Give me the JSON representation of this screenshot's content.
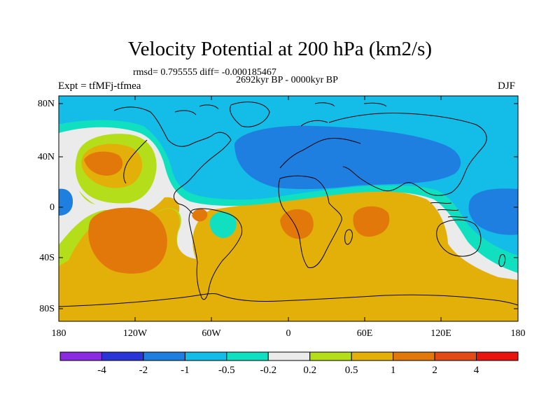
{
  "title": "Velocity Potential at 200 hPa (km2/s)",
  "stats": "rmsd= 0.795555 diff= -0.000185467",
  "period": "2692kyr BP - 0000kyr BP",
  "experiment": "Expt = tfMFj-tfmea",
  "season": "DJF",
  "lat_labels": [
    "80N",
    "40N",
    "0",
    "40S",
    "80S"
  ],
  "lon_labels": [
    "180",
    "120W",
    "60W",
    "0",
    "60E",
    "120E",
    "180"
  ],
  "colorbar": {
    "labels": [
      "-4",
      "-2",
      "-1",
      "-0.5",
      "-0.2",
      "0.2",
      "0.5",
      "1",
      "2",
      "4"
    ],
    "colors": [
      "#8a2be2",
      "#2a35d8",
      "#1e7fe0",
      "#13bde8",
      "#10e0c0",
      "#ebebeb",
      "#b4dd1a",
      "#e3b00a",
      "#e3780a",
      "#e24a16",
      "#e8140e"
    ]
  },
  "map_colors": {
    "strong_neg": "#1e7fe0",
    "neg": "#13bde8",
    "weak_neg": "#10e0c0",
    "neutral": "#ebebeb",
    "weak_pos": "#b4dd1a",
    "pos": "#e3b00a",
    "strong_pos": "#e3780a",
    "coast": "#000000"
  }
}
